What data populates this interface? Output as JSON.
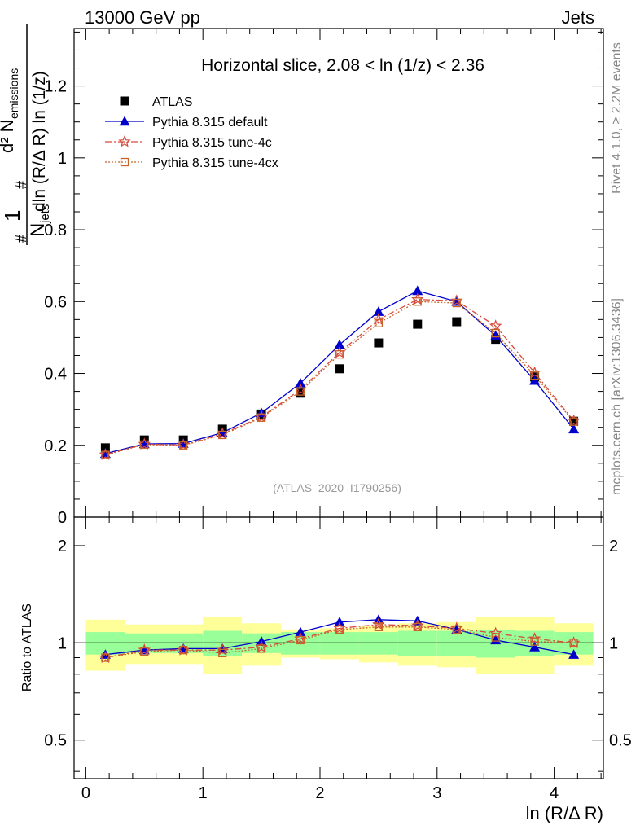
{
  "header": {
    "left": "13000 GeV pp",
    "right": "Jets"
  },
  "side_labels": {
    "rivet": "Rivet 4.1.0, ≥ 2.2M events",
    "mcplots": "mcplots.cern.ch [arXiv:1306.3436]"
  },
  "analysis_label": "(ATLAS_2020_I1790256)",
  "colors": {
    "atlas": "#000000",
    "default": "#0000cc",
    "tune4c": "#d84a3c",
    "tune4cx": "#c8642a",
    "band_inner": "#99ff99",
    "band_outer": "#ffff99"
  },
  "chart_data": {
    "type": "scatter",
    "title": "Horizontal slice, 2.08 < ln (1/z) < 2.36",
    "xlabel": "ln (R/Δ R)",
    "ylabel": "#frac{1}{N_{jets}}#frac{d² N_{emissions}}{dln (R/Δ R) ln (1/z)}",
    "ylabel_parts": {
      "one": "1",
      "njets": "N",
      "njets_sub": "jets",
      "d2": "d² N",
      "emissions_sub": "emissions",
      "denom": "dln (R/Δ R) ln (1/z)",
      "hash": "#"
    },
    "xlim": [
      -0.1,
      4.42
    ],
    "ylim": [
      0,
      1.36
    ],
    "x_ticks": [
      "0",
      "1",
      "2",
      "3",
      "4"
    ],
    "y_ticks": [
      "0",
      "0.2",
      "0.4",
      "0.6",
      "0.8",
      "1",
      "1.2"
    ],
    "x": [
      0.167,
      0.5,
      0.833,
      1.167,
      1.5,
      1.833,
      2.167,
      2.5,
      2.833,
      3.167,
      3.5,
      3.833,
      4.167
    ],
    "legend": [
      {
        "name": "ATLAS",
        "marker": "square"
      },
      {
        "name": "Pythia 8.315 default",
        "marker": "triangle"
      },
      {
        "name": "Pythia 8.315 tune-4c",
        "marker": "star"
      },
      {
        "name": "Pythia 8.315 tune-4cx",
        "marker": "open-square"
      }
    ],
    "series": [
      {
        "name": "ATLAS",
        "values": [
          0.193,
          0.215,
          0.215,
          0.245,
          0.287,
          0.345,
          0.413,
          0.485,
          0.537,
          0.544,
          0.495,
          0.39,
          0.267
        ]
      },
      {
        "name": "Pythia 8.315 default",
        "values": [
          0.177,
          0.204,
          0.205,
          0.235,
          0.29,
          0.373,
          0.48,
          0.572,
          0.63,
          0.6,
          0.505,
          0.38,
          0.245
        ]
      },
      {
        "name": "Pythia 8.315 tune-4c",
        "values": [
          0.174,
          0.203,
          0.201,
          0.232,
          0.279,
          0.355,
          0.458,
          0.55,
          0.606,
          0.602,
          0.532,
          0.402,
          0.268
        ]
      },
      {
        "name": "Pythia 8.315 tune-4cx",
        "values": [
          0.173,
          0.202,
          0.2,
          0.229,
          0.277,
          0.35,
          0.453,
          0.54,
          0.6,
          0.596,
          0.512,
          0.394,
          0.266
        ]
      }
    ],
    "ratio": {
      "ylabel": "Ratio to ATLAS",
      "ylim": [
        0.38,
        2.45
      ],
      "scale": "log",
      "y_ticks": [
        "0.5",
        "1",
        "2"
      ],
      "band_inner": [
        0.08,
        0.07,
        0.07,
        0.09,
        0.07,
        0.08,
        0.08,
        0.08,
        0.09,
        0.09,
        0.1,
        0.09,
        0.08
      ],
      "band_outer": [
        0.18,
        0.14,
        0.14,
        0.2,
        0.15,
        0.1,
        0.11,
        0.13,
        0.15,
        0.16,
        0.2,
        0.2,
        0.15
      ],
      "series": [
        {
          "name": "Pythia 8.315 default",
          "values": [
            0.92,
            0.95,
            0.96,
            0.96,
            1.01,
            1.08,
            1.16,
            1.18,
            1.17,
            1.1,
            1.02,
            0.97,
            0.92
          ]
        },
        {
          "name": "Pythia 8.315 tune-4c",
          "values": [
            0.9,
            0.95,
            0.95,
            0.95,
            0.97,
            1.03,
            1.11,
            1.14,
            1.13,
            1.11,
            1.07,
            1.03,
            1.0
          ]
        },
        {
          "name": "Pythia 8.315 tune-4cx",
          "values": [
            0.9,
            0.94,
            0.95,
            0.93,
            0.96,
            1.02,
            1.1,
            1.12,
            1.12,
            1.1,
            1.04,
            1.01,
            1.0
          ]
        }
      ]
    }
  }
}
